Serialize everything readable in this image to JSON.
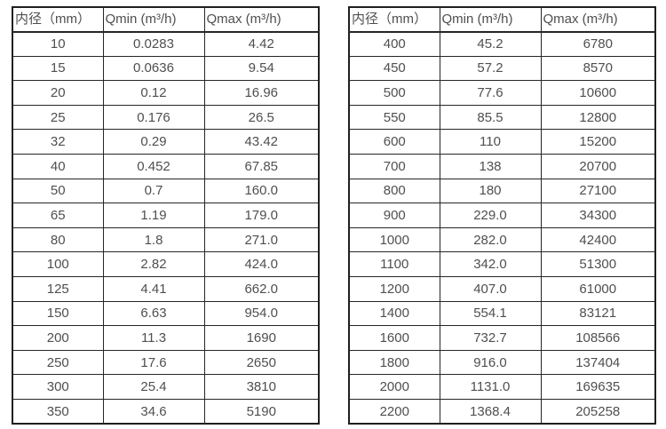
{
  "page": {
    "background_color": "#ffffff",
    "text_color": "#4f4f4f",
    "border_color": "#262626"
  },
  "tables": [
    {
      "name": "flow-rate-table-small-diameters",
      "headers": [
        "内径（mm）",
        "Qmin (m³/h)",
        "Qmax (m³/h)"
      ],
      "rows": [
        [
          "10",
          "0.0283",
          "4.42"
        ],
        [
          "15",
          "0.0636",
          "9.54"
        ],
        [
          "20",
          "0.12",
          "16.96"
        ],
        [
          "25",
          "0.176",
          "26.5"
        ],
        [
          "32",
          "0.29",
          "43.42"
        ],
        [
          "40",
          "0.452",
          "67.85"
        ],
        [
          "50",
          "0.7",
          "160.0"
        ],
        [
          "65",
          "1.19",
          "179.0"
        ],
        [
          "80",
          "1.8",
          "271.0"
        ],
        [
          "100",
          "2.82",
          "424.0"
        ],
        [
          "125",
          "4.41",
          "662.0"
        ],
        [
          "150",
          "6.63",
          "954.0"
        ],
        [
          "200",
          "11.3",
          "1690"
        ],
        [
          "250",
          "17.6",
          "2650"
        ],
        [
          "300",
          "25.4",
          "3810"
        ],
        [
          "350",
          "34.6",
          "5190"
        ]
      ]
    },
    {
      "name": "flow-rate-table-large-diameters",
      "headers": [
        "内径（mm）",
        "Qmin (m³/h)",
        "Qmax (m³/h)"
      ],
      "rows": [
        [
          "400",
          "45.2",
          "6780"
        ],
        [
          "450",
          "57.2",
          "8570"
        ],
        [
          "500",
          "77.6",
          "10600"
        ],
        [
          "550",
          "85.5",
          "12800"
        ],
        [
          "600",
          "110",
          "15200"
        ],
        [
          "700",
          "138",
          "20700"
        ],
        [
          "800",
          "180",
          "27100"
        ],
        [
          "900",
          "229.0",
          "34300"
        ],
        [
          "1000",
          "282.0",
          "42400"
        ],
        [
          "1100",
          "342.0",
          "51300"
        ],
        [
          "1200",
          "407.0",
          "61000"
        ],
        [
          "1400",
          "554.1",
          "83121"
        ],
        [
          "1600",
          "732.7",
          "108566"
        ],
        [
          "1800",
          "916.0",
          "137404"
        ],
        [
          "2000",
          "1131.0",
          "169635"
        ],
        [
          "2200",
          "1368.4",
          "205258"
        ]
      ]
    }
  ]
}
